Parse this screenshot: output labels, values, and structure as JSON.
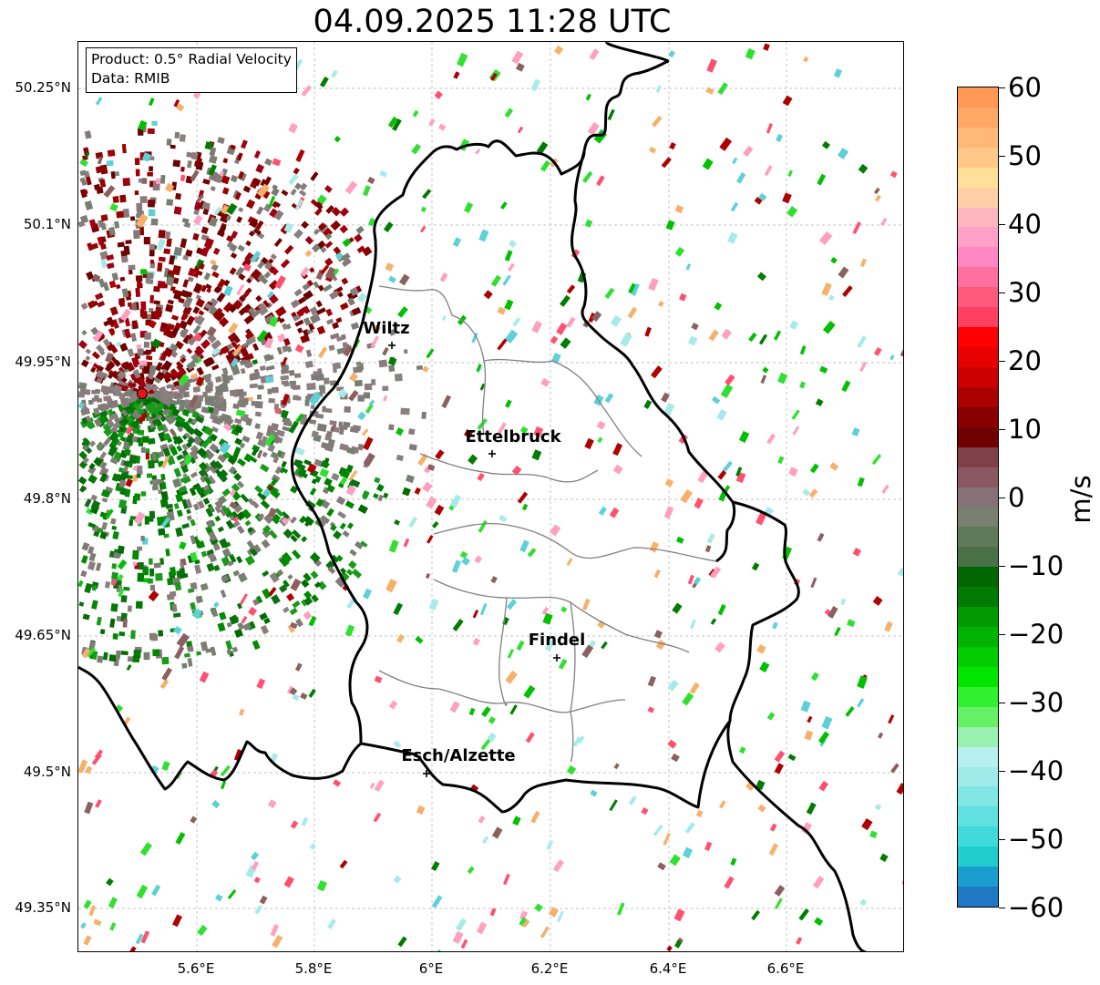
{
  "title": "04.09.2025 11:28 UTC",
  "info": {
    "product": "Product: 0.5° Radial Velocity",
    "data": "Data: RMIB"
  },
  "axes": {
    "lat_ticks": [
      "50.25°N",
      "50.1°N",
      "49.95°N",
      "49.8°N",
      "49.65°N",
      "49.5°N",
      "49.35°N"
    ],
    "lon_ticks": [
      "5.6°E",
      "5.8°E",
      "6°E",
      "6.2°E",
      "6.4°E",
      "6.6°E"
    ]
  },
  "cities": [
    {
      "name": "Wiltz"
    },
    {
      "name": "Ettelbruck"
    },
    {
      "name": "Findel"
    },
    {
      "name": "Esch/Alzette"
    }
  ],
  "radar_site": {
    "color": "#e8141a"
  },
  "colorbar": {
    "unit": "m/s",
    "ticks": [
      "60",
      "50",
      "40",
      "30",
      "20",
      "10",
      "0",
      "−10",
      "−20",
      "−30",
      "−40",
      "−50",
      "−60"
    ],
    "colors_top_to_bottom": [
      "#ff9955",
      "#ffa866",
      "#ffb877",
      "#ffc888",
      "#ffe09a",
      "#ffd0a8",
      "#ffb7bf",
      "#ffa0c8",
      "#ff88c4",
      "#ff70a0",
      "#ff5a7c",
      "#ff4060",
      "#ff0000",
      "#e60000",
      "#cc0000",
      "#aa0000",
      "#880000",
      "#700000",
      "#804048",
      "#8a5860",
      "#877078",
      "#7a8070",
      "#5e7a58",
      "#4a7048",
      "#006600",
      "#007a00",
      "#009900",
      "#00b300",
      "#00cc00",
      "#00e600",
      "#30f030",
      "#66f066",
      "#99f0b0",
      "#b8f0f0",
      "#a0eaea",
      "#80e6e6",
      "#60e0e0",
      "#40dada",
      "#20cccc",
      "#1a9ed0",
      "#1f78c4"
    ]
  }
}
